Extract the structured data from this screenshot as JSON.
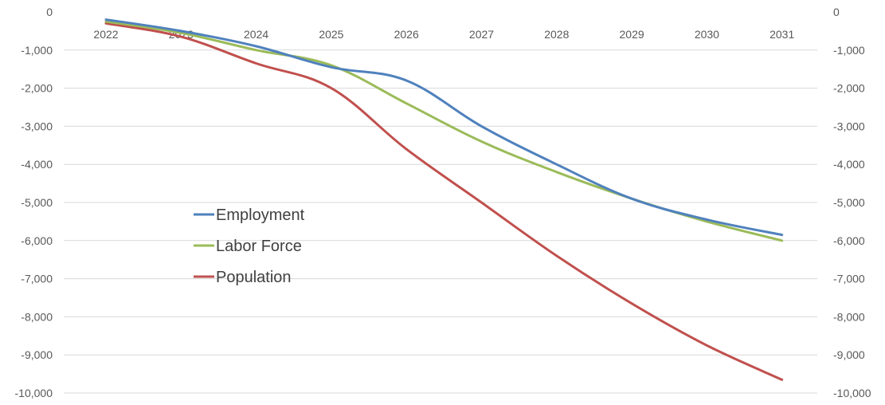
{
  "chart_data": {
    "type": "line",
    "title": "",
    "xlabel": "",
    "ylabel": "",
    "categories": [
      "2022",
      "2023",
      "2024",
      "2025",
      "2026",
      "2027",
      "2028",
      "2029",
      "2030",
      "2031"
    ],
    "y_ticks": [
      "0",
      "-1,000",
      "-2,000",
      "-3,000",
      "-4,000",
      "-5,000",
      "-6,000",
      "-7,000",
      "-8,000",
      "-9,000",
      "-10,000"
    ],
    "ylim": [
      -10000,
      0
    ],
    "secondary_y_axis": true,
    "grid": true,
    "x_axis_position": "top",
    "legend_position": "left-center",
    "series": [
      {
        "name": "Employment",
        "color": "#4f81bd",
        "values": [
          -200,
          -500,
          -900,
          -1450,
          -1800,
          -3000,
          -4000,
          -4900,
          -5450,
          -5850
        ]
      },
      {
        "name": "Labor Force",
        "color": "#9bbb59",
        "values": [
          -250,
          -550,
          -1000,
          -1400,
          -2400,
          -3400,
          -4200,
          -4900,
          -5500,
          -6000
        ]
      },
      {
        "name": "Population",
        "color": "#c0504d",
        "values": [
          -300,
          -650,
          -1350,
          -2000,
          -3600,
          -5000,
          -6400,
          -7650,
          -8750,
          -9650
        ]
      }
    ]
  }
}
